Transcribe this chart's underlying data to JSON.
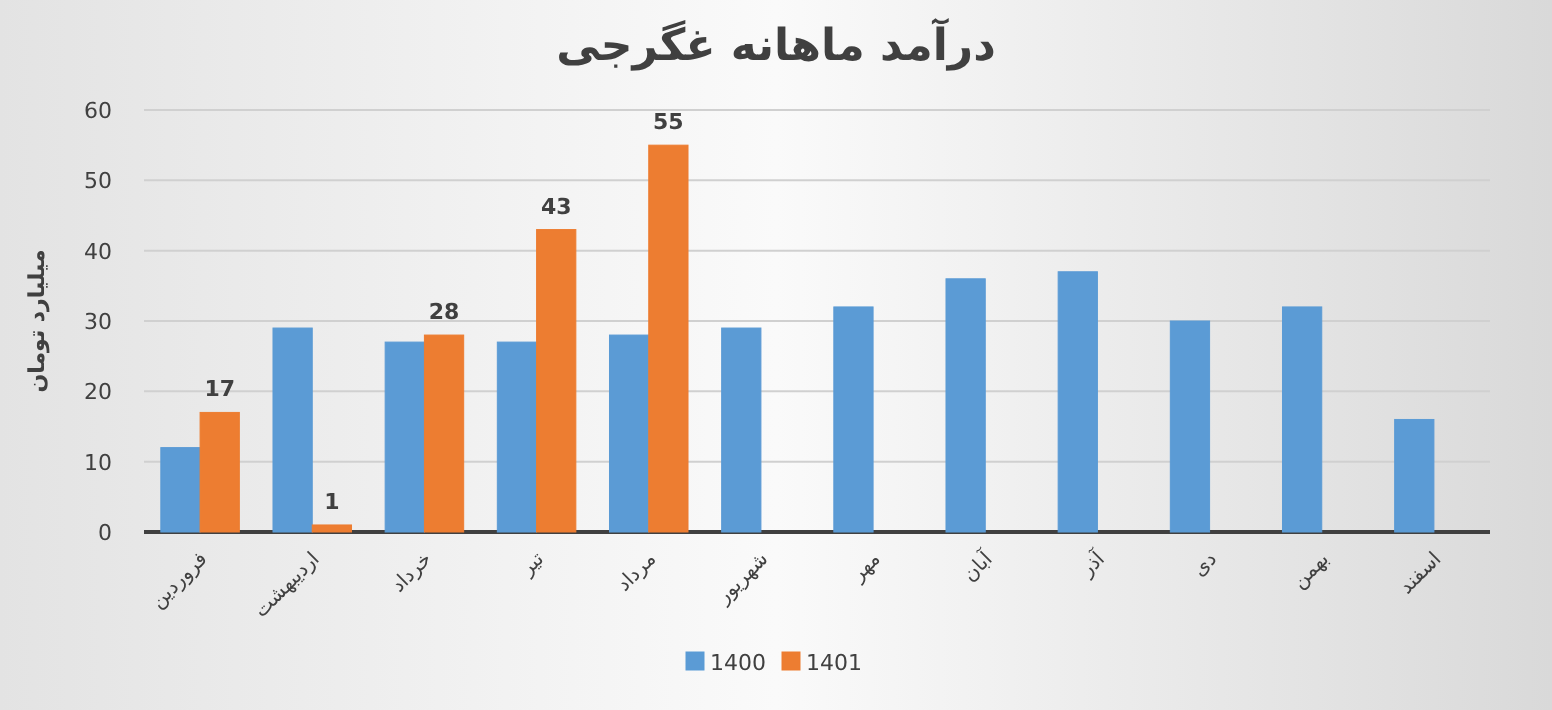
{
  "chart_data": {
    "type": "bar",
    "title": "درآمد ماهانه غگرجی",
    "ylabel": "میلیارد تومان",
    "categories": [
      "فروردین",
      "اردیبهشت",
      "خرداد",
      "تیر",
      "مرداد",
      "شهریور",
      "مهر",
      "آبان",
      "آذر",
      "دی",
      "بهمن",
      "اسفند"
    ],
    "series": [
      {
        "name": "1400",
        "color": "#5b9bd5",
        "values": [
          12,
          29,
          27,
          27,
          28,
          29,
          32,
          36,
          37,
          30,
          32,
          16
        ]
      },
      {
        "name": "1401",
        "color": "#ed7d31",
        "values": [
          17,
          1,
          28,
          43,
          55,
          null,
          null,
          null,
          null,
          null,
          null,
          null
        ],
        "value_labels": [
          "17",
          "1",
          "28",
          "43",
          "55",
          null,
          null,
          null,
          null,
          null,
          null,
          null
        ]
      }
    ],
    "ylim": [
      0,
      60
    ],
    "yticks": [
      0,
      10,
      20,
      30,
      40,
      50,
      60
    ],
    "grid": "y",
    "legend": "bottom"
  }
}
